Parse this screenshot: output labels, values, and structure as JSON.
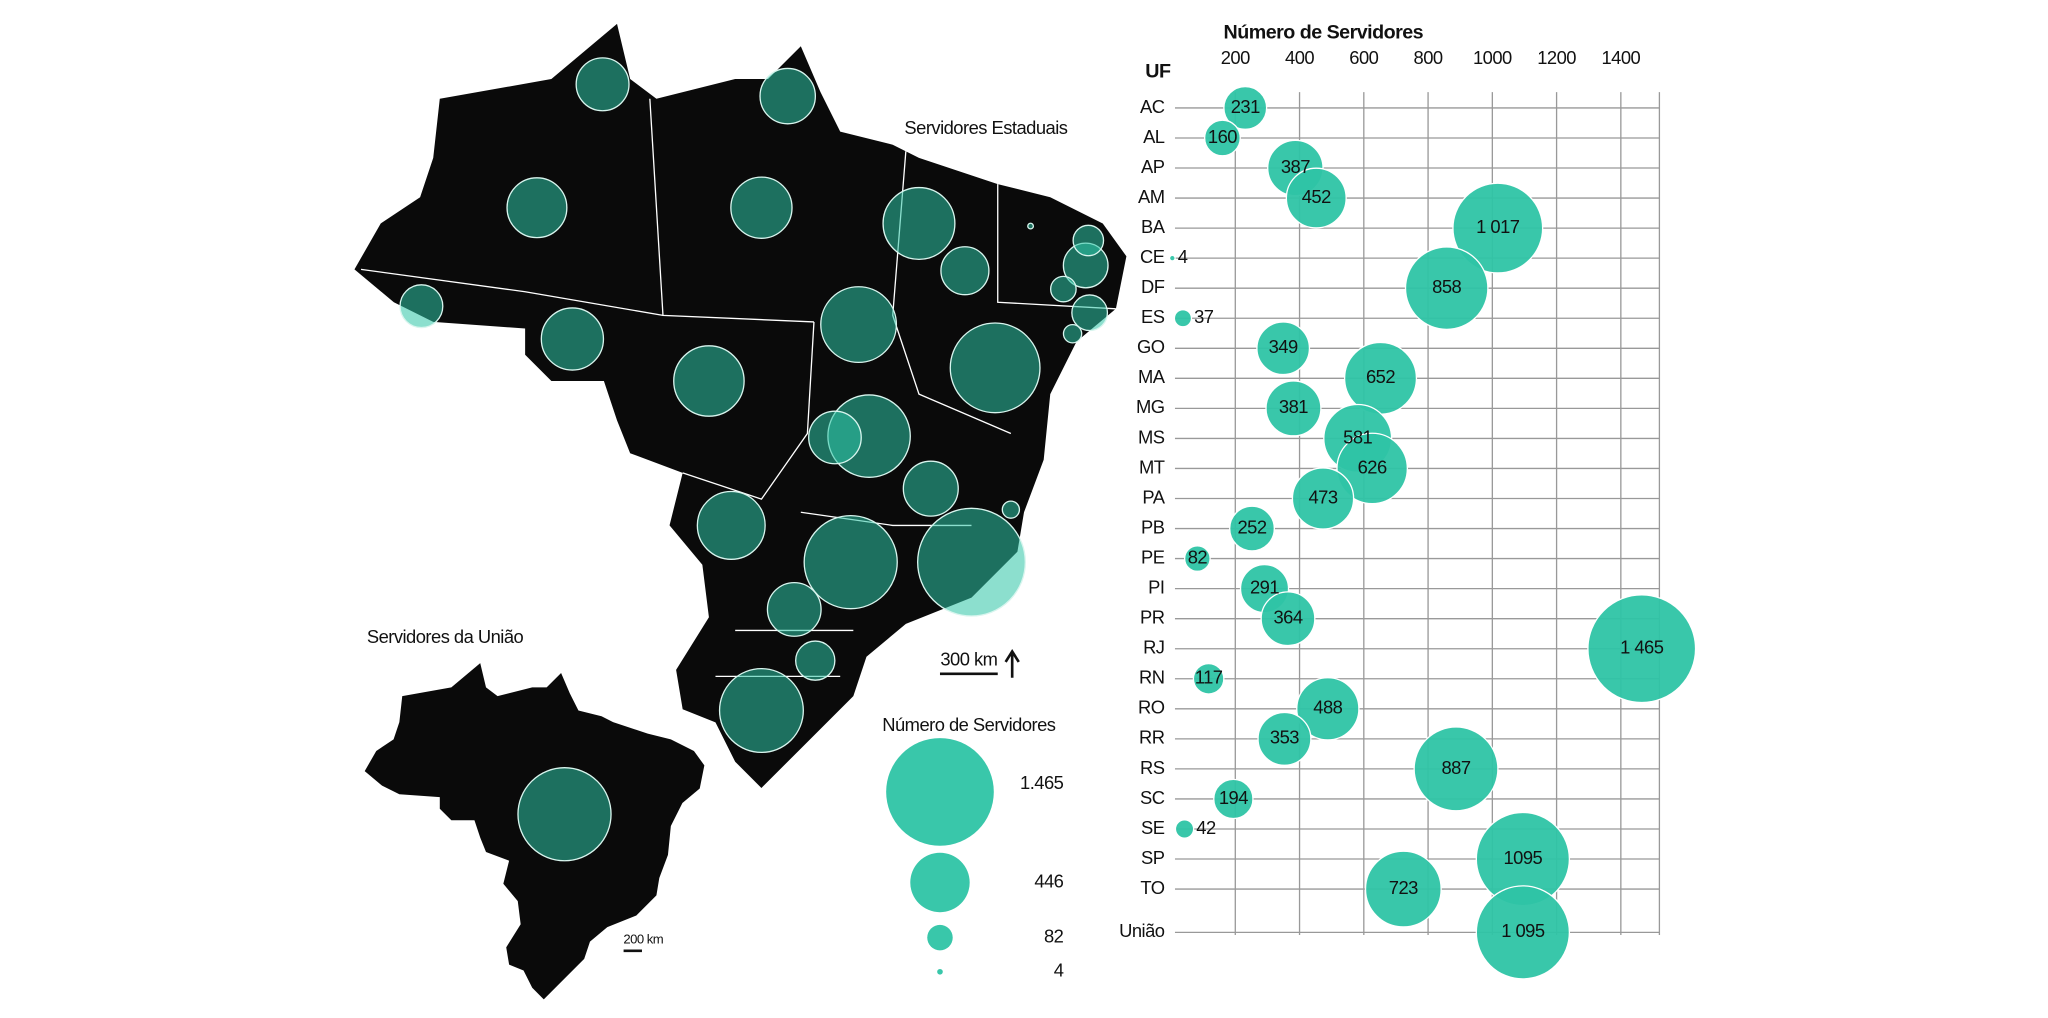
{
  "chart_data": {
    "type": "bubble",
    "title": "Número de Servidores",
    "y_axis_title": "UF",
    "categories": [
      "AC",
      "AL",
      "AP",
      "AM",
      "BA",
      "CE",
      "DF",
      "ES",
      "GO",
      "MA",
      "MG",
      "MS",
      "MT",
      "PA",
      "PB",
      "PE",
      "PI",
      "PR",
      "RJ",
      "RN",
      "RO",
      "RR",
      "RS",
      "SC",
      "SE",
      "SP",
      "TO",
      "União"
    ],
    "values": [
      231,
      160,
      387,
      452,
      1017,
      4,
      858,
      37,
      349,
      652,
      381,
      581,
      626,
      473,
      252,
      82,
      291,
      364,
      1465,
      117,
      488,
      353,
      887,
      194,
      42,
      1095,
      723,
      1095
    ],
    "value_labels": [
      "231",
      "160",
      "387",
      "452",
      "1 017",
      "4",
      "858",
      "37",
      "349",
      "652",
      "381",
      "581",
      "626",
      "473",
      "252",
      "82",
      "291",
      "364",
      "1 465",
      "117",
      "488",
      "353",
      "887",
      "194",
      "42",
      "1095",
      "723",
      "1 095"
    ],
    "xlim": [
      0,
      1520
    ],
    "xticks": [
      200,
      400,
      600,
      800,
      1000,
      1200,
      1400
    ],
    "color": "#2ec4a5",
    "grid": true,
    "size_legend": {
      "title": "Número de Servidores",
      "values": [
        1465,
        446,
        82,
        4
      ],
      "labels": [
        "1.465",
        "446",
        "82",
        "4"
      ]
    }
  },
  "map": {
    "title": "Servidores Estaduais",
    "scale_label": "300 km",
    "union_title": "Servidores da União",
    "union_scale_label": "200 km"
  }
}
